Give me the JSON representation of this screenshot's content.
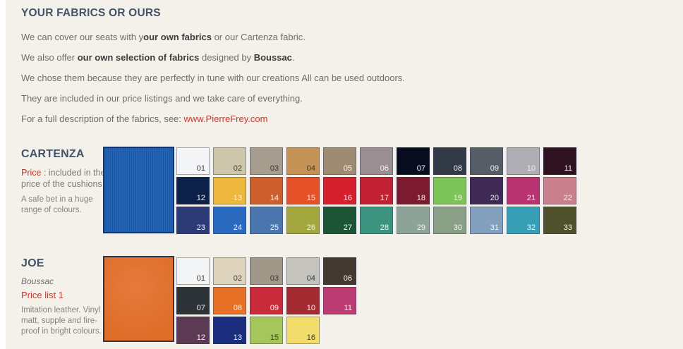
{
  "colors": {
    "background": "#f4f0ea",
    "heading": "#425468",
    "accent_red": "#c13b2e"
  },
  "intro": {
    "title": "YOUR FABRICS OR OURS",
    "paragraphs": [
      {
        "segments": [
          {
            "t": "We can cover our seats with y"
          },
          {
            "t": "our own fabrics",
            "b": true
          },
          {
            "t": " or our Cartenza fabric."
          }
        ]
      },
      {
        "segments": [
          {
            "t": "We also offer "
          },
          {
            "t": "our own selection of fabrics",
            "b": true
          },
          {
            "t": " designed by "
          },
          {
            "t": "Boussac",
            "b": true
          },
          {
            "t": "."
          }
        ]
      },
      {
        "segments": [
          {
            "t": "We chose them because they are perfectly in tune with our creations  All can be used outdoors."
          }
        ]
      },
      {
        "segments": [
          {
            "t": "They are included in our price listings and we take care of everything."
          }
        ]
      },
      {
        "segments": [
          {
            "t": "For a full description of the fabrics, see: "
          },
          {
            "t": "www.PierreFrey.com",
            "red": true,
            "link": true
          }
        ]
      }
    ]
  },
  "cartenza": {
    "title": "CARTENZA",
    "price_segments": [
      {
        "t": "Price",
        "red": true
      },
      {
        "t": " : included in the price of the cushions"
      }
    ],
    "description": "A safe bet in a huge range of colours.",
    "fabric": {
      "texture": "ribbed",
      "base": "#2263b4",
      "stripe": "#1b55a4",
      "border": "#1b3263"
    },
    "swatch_rows": [
      [
        {
          "n": "01",
          "c": "#f4f5f7",
          "dark": true
        },
        {
          "n": "02",
          "c": "#cdc6ab",
          "dark": true
        },
        {
          "n": "03",
          "c": "#a79d8e",
          "dark": true
        },
        {
          "n": "04",
          "c": "#c59355",
          "dark": true
        },
        {
          "n": "05",
          "c": "#9f8a72"
        },
        {
          "n": "06",
          "c": "#9b8e92"
        },
        {
          "n": "07",
          "c": "#070d1f"
        },
        {
          "n": "08",
          "c": "#333a47"
        },
        {
          "n": "09",
          "c": "#575d67"
        },
        {
          "n": "10",
          "c": "#aeaeb4"
        },
        {
          "n": "11",
          "c": "#2e121f"
        }
      ],
      [
        {
          "n": "12",
          "c": "#0e2148"
        },
        {
          "n": "13",
          "c": "#eeb83e"
        },
        {
          "n": "14",
          "c": "#cd5f2d"
        },
        {
          "n": "15",
          "c": "#e6512a"
        },
        {
          "n": "16",
          "c": "#d41f2d"
        },
        {
          "n": "17",
          "c": "#c22134"
        },
        {
          "n": "18",
          "c": "#7c1b2f"
        },
        {
          "n": "19",
          "c": "#7cc457"
        },
        {
          "n": "20",
          "c": "#3e2a54"
        },
        {
          "n": "21",
          "c": "#ba3371"
        },
        {
          "n": "22",
          "c": "#ca7f8c"
        }
      ],
      [
        {
          "n": "23",
          "c": "#2c3a76"
        },
        {
          "n": "24",
          "c": "#2a6abf"
        },
        {
          "n": "25",
          "c": "#4a76ad"
        },
        {
          "n": "26",
          "c": "#a2a83d"
        },
        {
          "n": "27",
          "c": "#1c5535"
        },
        {
          "n": "28",
          "c": "#3c937f"
        },
        {
          "n": "29",
          "c": "#8da397"
        },
        {
          "n": "30",
          "c": "#89a086"
        },
        {
          "n": "31",
          "c": "#83a0bf"
        },
        {
          "n": "32",
          "c": "#379fb5"
        },
        {
          "n": "33",
          "c": "#4e512b"
        }
      ]
    ]
  },
  "joe": {
    "title": "JOE",
    "brand": "Boussac",
    "price_list": "Price list 1",
    "description": "Imitation leather. Vinyl matt, supple and fire-proof in bright colours.",
    "fabric": {
      "texture": "plain",
      "base": "#df6e2a",
      "highlight": "#e67a3c",
      "border": "#35333f"
    },
    "swatch_rows": [
      [
        {
          "n": "01",
          "c": "#f3f4f6",
          "dark": true
        },
        {
          "n": "02",
          "c": "#ded4bd",
          "dark": true
        },
        {
          "n": "03",
          "c": "#a2988a",
          "dark": true
        },
        {
          "n": "04",
          "c": "#c4c3be",
          "dark": true
        },
        {
          "n": "06",
          "c": "#433931"
        }
      ],
      [
        {
          "n": "07",
          "c": "#2d3237"
        },
        {
          "n": "08",
          "c": "#e77127"
        },
        {
          "n": "09",
          "c": "#ca2b3b"
        },
        {
          "n": "10",
          "c": "#a52b33"
        },
        {
          "n": "11",
          "c": "#ba3c73"
        }
      ],
      [
        {
          "n": "12",
          "c": "#5c3a54"
        },
        {
          "n": "13",
          "c": "#1b2e7d"
        },
        {
          "n": "15",
          "c": "#a4c65b",
          "dark": true
        },
        {
          "n": "16",
          "c": "#f2dc6b",
          "dark": true
        }
      ]
    ]
  }
}
